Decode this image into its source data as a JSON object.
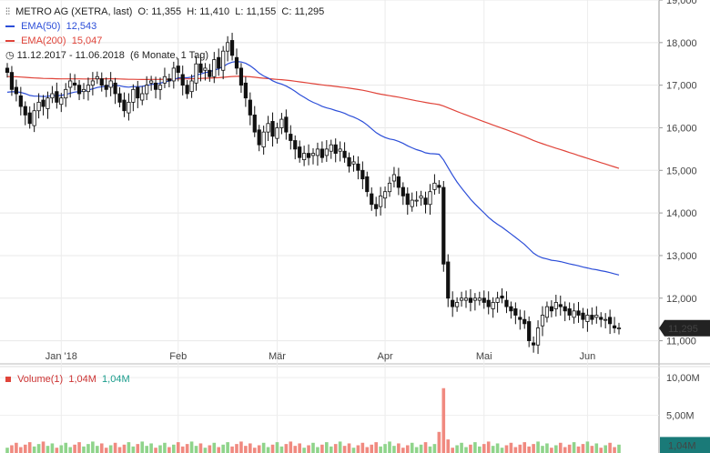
{
  "chart_data": {
    "type": "candlestick",
    "header": {
      "icon": "candlestick-icon",
      "name": "METRO AG (XETRA, last)",
      "o_label": "O:",
      "o": "11,355",
      "h_label": "H:",
      "h": "11,410",
      "l_label": "L:",
      "l": "11,155",
      "c_label": "C:",
      "c": "11,295"
    },
    "ema50": {
      "label": "EMA(50)",
      "value": "12,543",
      "color": "#2c4ed8"
    },
    "ema200": {
      "label": "EMA(200)",
      "value": "15,047",
      "color": "#e0443a"
    },
    "period": {
      "icon": "clock-icon",
      "range": "11.12.2017 - 11.06.2018",
      "detail": "(6 Monate, 1 Tag)"
    },
    "last_price": "11,295",
    "y_ticks": [
      "19,000",
      "18,000",
      "17,000",
      "16,000",
      "15,000",
      "14,000",
      "13,000",
      "12,000",
      "11,000"
    ],
    "ylim": [
      10.5,
      19.0
    ],
    "x_ticks": [
      "Jan '18",
      "Feb",
      "Mär",
      "Apr",
      "Mai",
      "Jun"
    ],
    "x_tick_days": [
      12,
      38,
      60,
      84,
      106,
      129
    ],
    "day_count": 137,
    "closes": [
      17.3,
      16.9,
      16.8,
      16.5,
      16.3,
      16.1,
      16.4,
      16.6,
      16.5,
      16.7,
      16.8,
      16.6,
      16.7,
      16.9,
      17.1,
      17.0,
      16.8,
      16.9,
      17.0,
      17.1,
      17.2,
      17.0,
      16.9,
      17.1,
      16.8,
      16.6,
      16.4,
      16.6,
      16.9,
      16.7,
      16.8,
      17.0,
      17.1,
      16.9,
      17.0,
      17.2,
      17.1,
      17.4,
      17.3,
      17.0,
      16.8,
      17.1,
      17.5,
      17.3,
      17.4,
      17.2,
      17.6,
      17.4,
      17.8,
      18.0,
      17.7,
      17.4,
      17.0,
      16.7,
      16.3,
      15.9,
      15.6,
      15.9,
      16.1,
      15.8,
      16.0,
      16.2,
      15.9,
      15.7,
      15.5,
      15.3,
      15.4,
      15.3,
      15.4,
      15.5,
      15.3,
      15.5,
      15.6,
      15.4,
      15.5,
      15.3,
      15.1,
      15.2,
      15.0,
      14.8,
      14.5,
      14.2,
      14.1,
      14.4,
      14.5,
      14.7,
      14.9,
      14.6,
      14.4,
      14.2,
      14.3,
      14.3,
      14.4,
      14.2,
      14.5,
      14.7,
      14.6,
      12.8,
      12.0,
      11.8,
      11.9,
      12.0,
      12.0,
      11.9,
      12.0,
      12.0,
      11.9,
      11.8,
      11.9,
      12.0,
      12.0,
      11.8,
      11.7,
      11.6,
      11.5,
      11.4,
      11.0,
      10.9,
      11.3,
      11.6,
      11.8,
      11.7,
      11.9,
      11.8,
      11.7,
      11.6,
      11.7,
      11.6,
      11.5,
      11.6,
      11.5,
      11.6,
      11.5,
      11.5,
      11.4,
      11.3,
      11.3
    ],
    "ema50_start": 16.8,
    "ema50_end": 12.543,
    "ema200_start": 17.2,
    "ema200_end": 15.047,
    "volume_panel": {
      "label": "Volume(1)",
      "value": "1,04M",
      "value2": "1,04M",
      "y_ticks": [
        "10,00M",
        "5,00M"
      ],
      "last": "1,04M",
      "spike_day": 97,
      "spike_value": 8.6
    }
  }
}
